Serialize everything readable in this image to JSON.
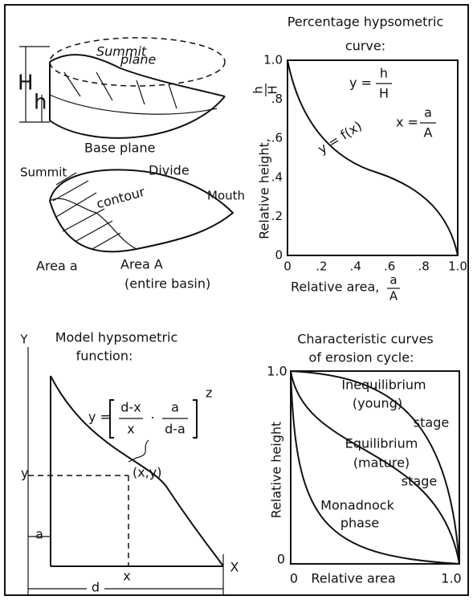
{
  "block_diagram": {
    "summit_plane": [
      "Summit",
      "plane"
    ],
    "H": "H",
    "h": "h",
    "base_plane": "Base plane",
    "summit": "Summit",
    "divide": "Divide",
    "contour": "contour",
    "mouth": "Mouth",
    "area_a": "Area a",
    "area_A": "Area A",
    "entire_basin": "(entire basin)"
  },
  "percentage_curve": {
    "title": [
      "Percentage hypsometric",
      "curve:"
    ],
    "y_label": "Relative height,",
    "y_label_fraction": [
      "h",
      "H"
    ],
    "x_label": "Relative area,",
    "x_label_fraction": [
      "a",
      "A"
    ],
    "yticks": [
      "1.0",
      ".8",
      ".6",
      ".4",
      ".2",
      "0"
    ],
    "xticks": [
      "0",
      ".2",
      ".4",
      ".6",
      ".8",
      "1.0"
    ],
    "eq_y": [
      "y =",
      "h",
      "H"
    ],
    "eq_x": [
      "x =",
      "a",
      "A"
    ],
    "curve_label": "y = f(x)"
  },
  "model_function": {
    "title": [
      "Model hypsometric",
      "function:"
    ],
    "Y": "Y",
    "X": "X",
    "eq": {
      "lhs": "y =",
      "num1": "d-x",
      "den1": "x",
      "dot": "·",
      "num2": "a",
      "den2": "d-a",
      "exp": "z"
    },
    "point": "(x,y)",
    "y": "y",
    "a": "a",
    "x": "x",
    "d": "d"
  },
  "erosion_cycle": {
    "title": [
      "Characteristic curves",
      "of erosion cycle:"
    ],
    "y_top": "1.0",
    "y_zero": "0",
    "x_zero": "0",
    "x_one": "1.0",
    "y_label": "Relative height",
    "x_label": "Relative area",
    "young": [
      "Inequilibrium",
      "(young)",
      "stage"
    ],
    "mature": [
      "Equilibrium",
      "(mature)",
      "stage"
    ],
    "old": [
      "Monadnock",
      "phase"
    ]
  }
}
